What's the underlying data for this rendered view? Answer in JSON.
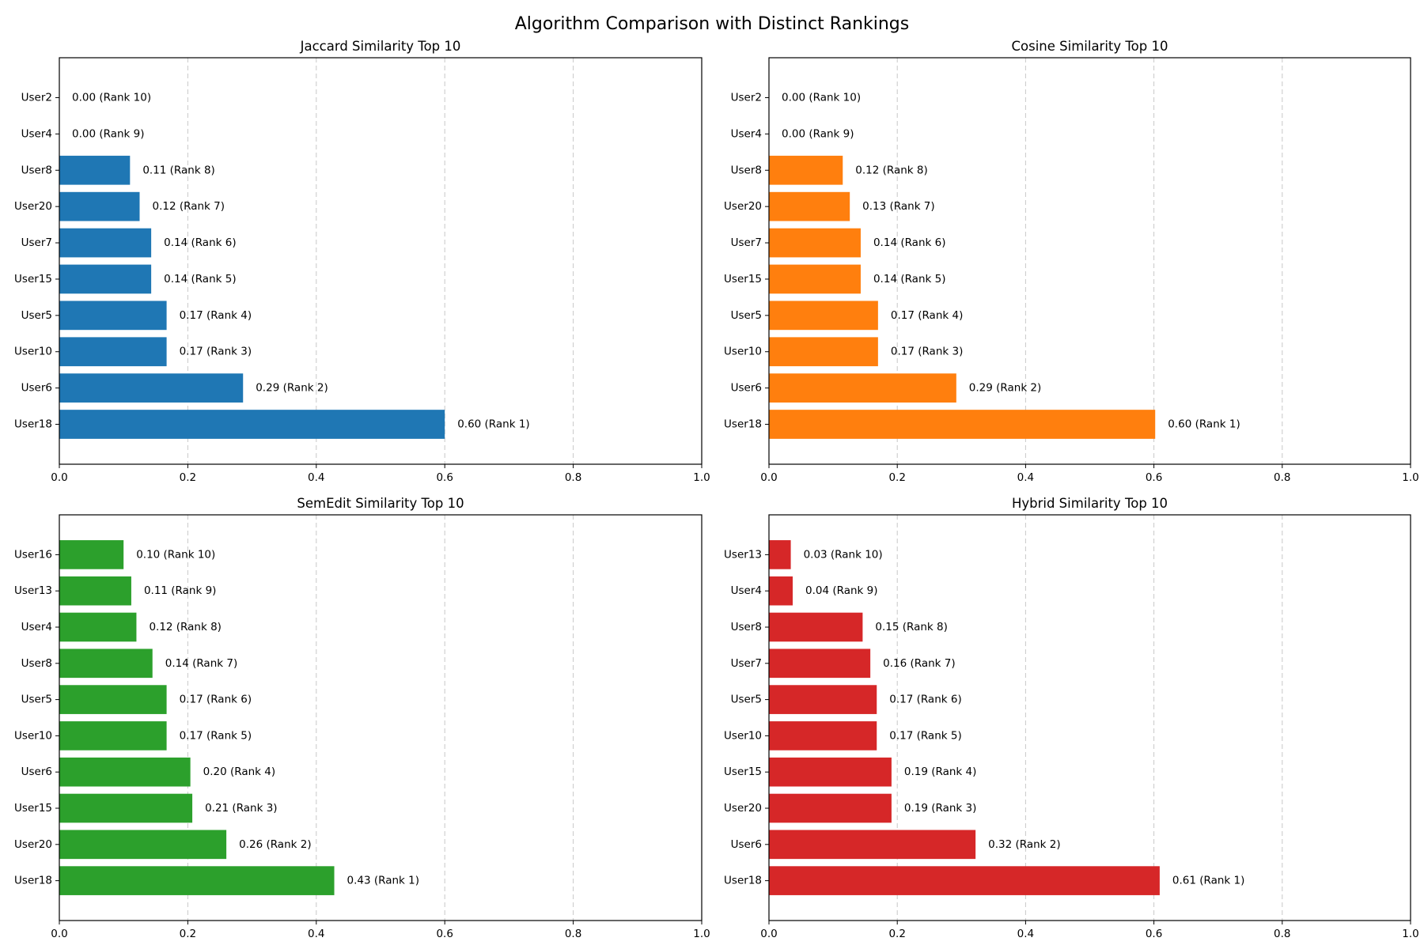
{
  "figure": {
    "title": "Algorithm Comparison with Distinct Rankings"
  },
  "chart_data": [
    {
      "type": "bar",
      "orientation": "horizontal",
      "title": "Jaccard Similarity Top 10",
      "color": "#1f77b4",
      "categories": [
        "User2",
        "User4",
        "User8",
        "User20",
        "User7",
        "User15",
        "User5",
        "User10",
        "User6",
        "User18"
      ],
      "values": [
        0.0,
        0.0,
        0.11,
        0.125,
        0.143,
        0.143,
        0.167,
        0.167,
        0.286,
        0.6
      ],
      "labels": [
        "0.00 (Rank 10)",
        "0.00 (Rank 9)",
        "0.11 (Rank 8)",
        "0.12 (Rank 7)",
        "0.14 (Rank 6)",
        "0.14 (Rank 5)",
        "0.17 (Rank 4)",
        "0.17 (Rank 3)",
        "0.29 (Rank 2)",
        "0.60 (Rank 1)"
      ],
      "xlim": [
        0,
        1
      ],
      "xticks": [
        "0.0",
        "0.2",
        "0.4",
        "0.6",
        "0.8",
        "1.0"
      ],
      "grid": "x-dashed"
    },
    {
      "type": "bar",
      "orientation": "horizontal",
      "title": "Cosine Similarity Top 10",
      "color": "#ff7f0e",
      "categories": [
        "User2",
        "User4",
        "User8",
        "User20",
        "User7",
        "User15",
        "User5",
        "User10",
        "User6",
        "User18"
      ],
      "values": [
        0.0,
        0.0,
        0.115,
        0.126,
        0.143,
        0.143,
        0.17,
        0.17,
        0.292,
        0.602
      ],
      "labels": [
        "0.00 (Rank 10)",
        "0.00 (Rank 9)",
        "0.12 (Rank 8)",
        "0.13 (Rank 7)",
        "0.14 (Rank 6)",
        "0.14 (Rank 5)",
        "0.17 (Rank 4)",
        "0.17 (Rank 3)",
        "0.29 (Rank 2)",
        "0.60 (Rank 1)"
      ],
      "xlim": [
        0,
        1
      ],
      "xticks": [
        "0.0",
        "0.2",
        "0.4",
        "0.6",
        "0.8",
        "1.0"
      ],
      "grid": "x-dashed"
    },
    {
      "type": "bar",
      "orientation": "horizontal",
      "title": "SemEdit Similarity Top 10",
      "color": "#2ca02c",
      "categories": [
        "User16",
        "User13",
        "User4",
        "User8",
        "User5",
        "User10",
        "User6",
        "User15",
        "User20",
        "User18"
      ],
      "values": [
        0.1,
        0.112,
        0.12,
        0.145,
        0.167,
        0.167,
        0.204,
        0.207,
        0.26,
        0.428
      ],
      "labels": [
        "0.10 (Rank 10)",
        "0.11 (Rank 9)",
        "0.12 (Rank 8)",
        "0.14 (Rank 7)",
        "0.17 (Rank 6)",
        "0.17 (Rank 5)",
        "0.20 (Rank 4)",
        "0.21 (Rank 3)",
        "0.26 (Rank 2)",
        "0.43 (Rank 1)"
      ],
      "xlim": [
        0,
        1
      ],
      "xticks": [
        "0.0",
        "0.2",
        "0.4",
        "0.6",
        "0.8",
        "1.0"
      ],
      "grid": "x-dashed"
    },
    {
      "type": "bar",
      "orientation": "horizontal",
      "title": "Hybrid Similarity Top 10",
      "color": "#d62728",
      "categories": [
        "User13",
        "User4",
        "User8",
        "User7",
        "User5",
        "User10",
        "User15",
        "User20",
        "User6",
        "User18"
      ],
      "values": [
        0.034,
        0.037,
        0.146,
        0.158,
        0.168,
        0.168,
        0.191,
        0.191,
        0.322,
        0.609
      ],
      "labels": [
        "0.03 (Rank 10)",
        "0.04 (Rank 9)",
        "0.15 (Rank 8)",
        "0.16 (Rank 7)",
        "0.17 (Rank 6)",
        "0.17 (Rank 5)",
        "0.19 (Rank 4)",
        "0.19 (Rank 3)",
        "0.32 (Rank 2)",
        "0.61 (Rank 1)"
      ],
      "xlim": [
        0,
        1
      ],
      "xticks": [
        "0.0",
        "0.2",
        "0.4",
        "0.6",
        "0.8",
        "1.0"
      ],
      "grid": "x-dashed"
    }
  ]
}
